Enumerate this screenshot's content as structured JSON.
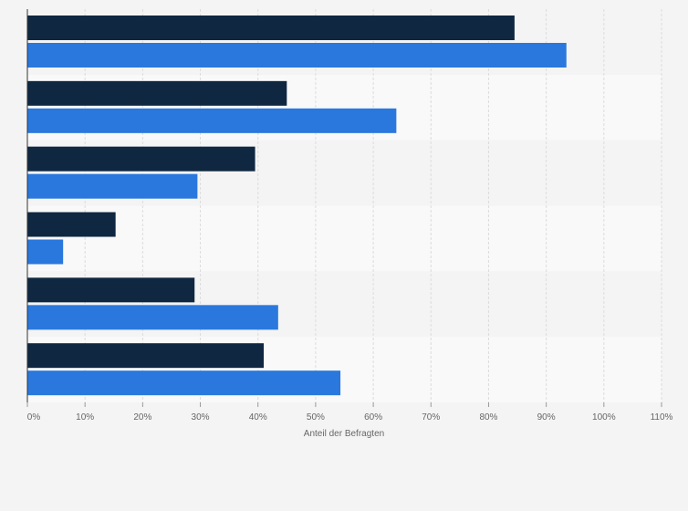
{
  "chart_data": {
    "type": "bar",
    "orientation": "horizontal",
    "categories": [
      "",
      "",
      "",
      "",
      "",
      ""
    ],
    "series": [
      {
        "color": "#0f2741",
        "values": [
          84.5,
          45.0,
          39.5,
          15.3,
          29.0,
          41.0
        ]
      },
      {
        "color": "#2a78dd",
        "values": [
          93.5,
          64.0,
          29.5,
          6.2,
          43.5,
          54.3
        ]
      }
    ],
    "xlim": [
      0,
      110
    ],
    "xticks": [
      "0%",
      "10%",
      "20%",
      "30%",
      "40%",
      "50%",
      "60%",
      "70%",
      "80%",
      "90%",
      "100%",
      "110%"
    ],
    "xlabel": "Anteil der Befragten",
    "ylabel": "",
    "grid": true,
    "legend": "none"
  }
}
